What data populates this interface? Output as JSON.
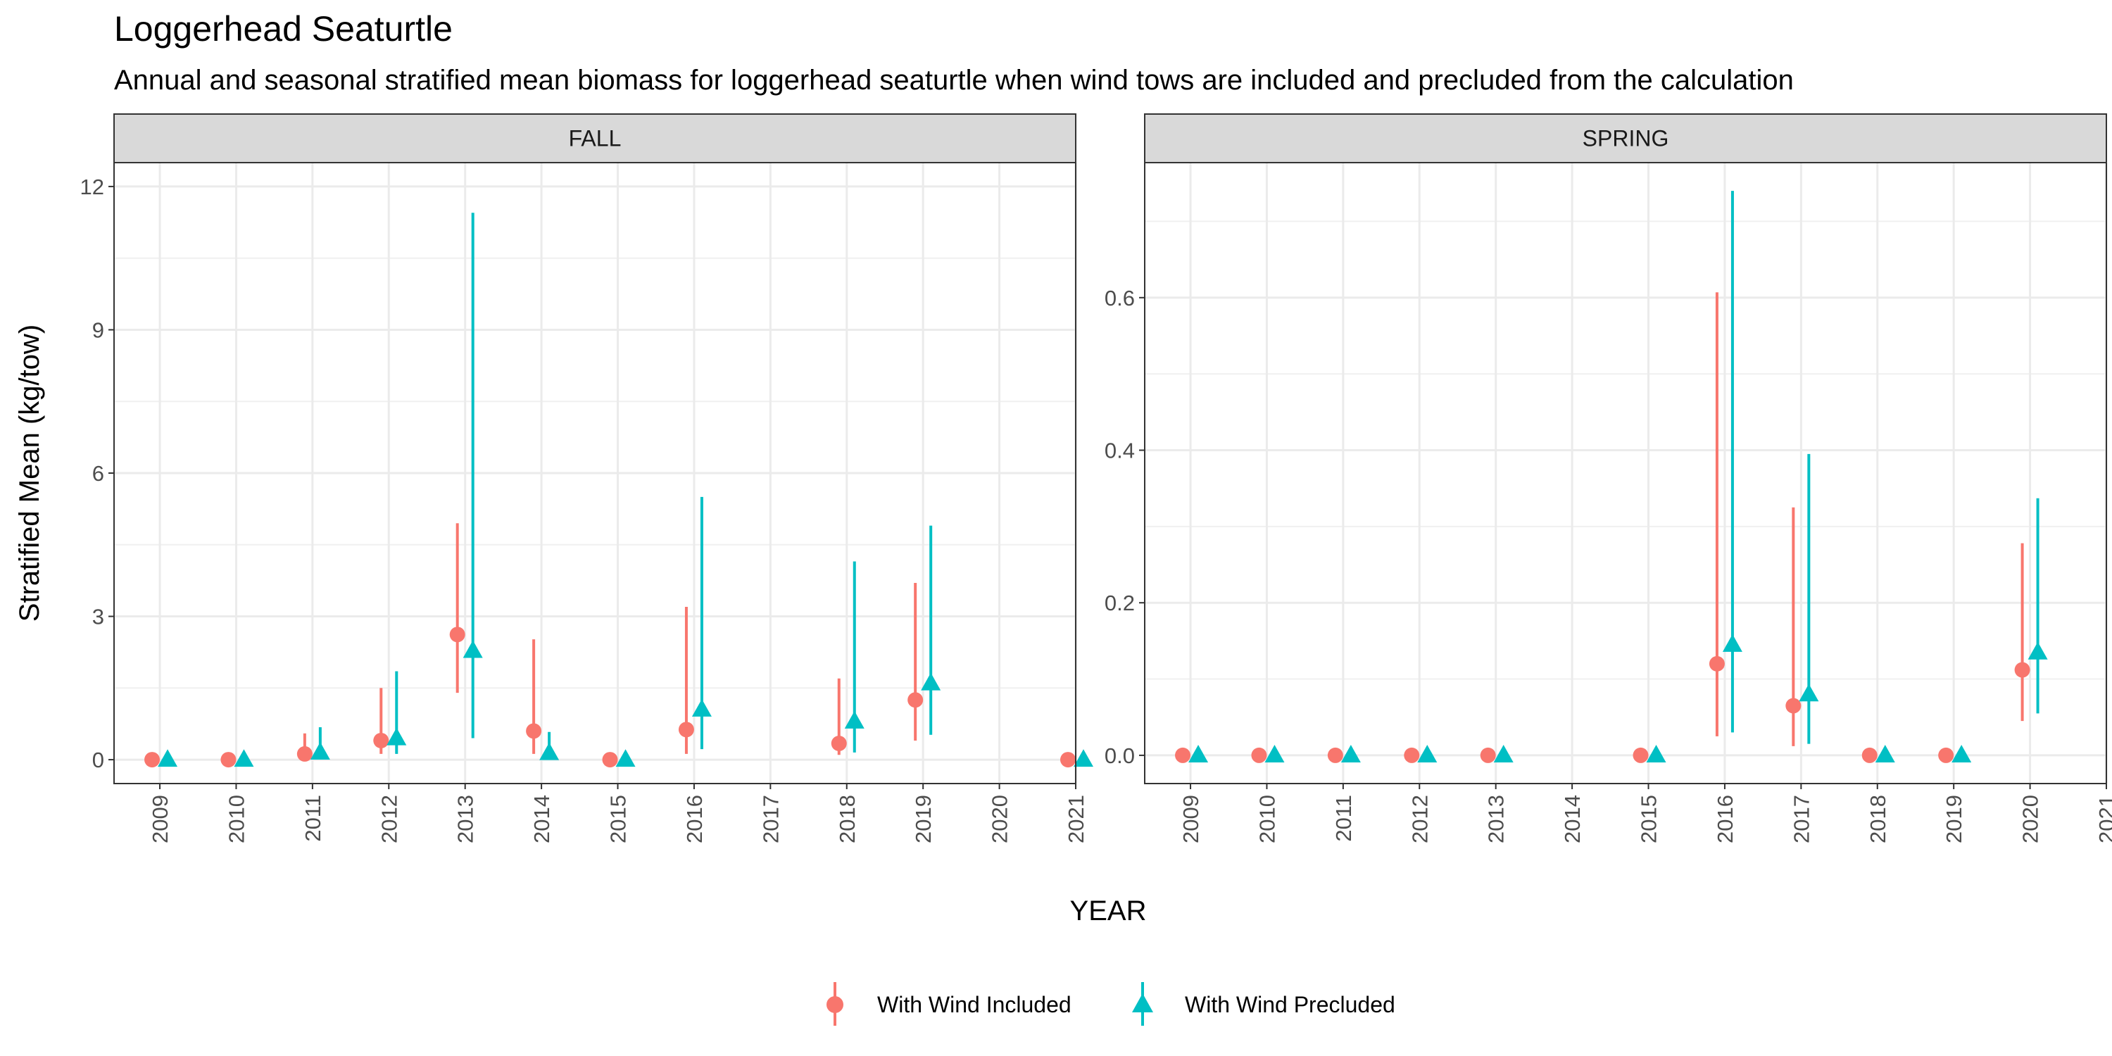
{
  "title": "Loggerhead Seaturtle",
  "subtitle": "Annual and seasonal stratified mean biomass for loggerhead seaturtle when wind tows are included and precluded from the calculation",
  "ylabel": "Stratified Mean (kg/tow)",
  "xlabel": "YEAR",
  "legend": {
    "position": "bottom",
    "items": [
      {
        "label": "With Wind Included",
        "color": "#F8766D",
        "shape": "circle"
      },
      {
        "label": "With Wind Precluded",
        "color": "#00BFC4",
        "shape": "triangle"
      }
    ]
  },
  "chart_data": [
    {
      "type": "scatter",
      "panel": "FALL",
      "categories": [
        "2009",
        "2010",
        "2011",
        "2012",
        "2013",
        "2014",
        "2015",
        "2016",
        "2017",
        "2018",
        "2019",
        "2020",
        "2021"
      ],
      "ylim": [
        -0.5,
        12.5
      ],
      "yticks": [
        0,
        3,
        6,
        9,
        12
      ],
      "ytick_labels": [
        "0",
        "3",
        "6",
        "9",
        "12"
      ],
      "grid": true,
      "series": [
        {
          "name": "With Wind Included",
          "color": "#F8766D",
          "shape": "circle",
          "points": [
            {
              "x": "2009",
              "y": 0.0,
              "lo": 0.0,
              "hi": 0.0
            },
            {
              "x": "2010",
              "y": 0.0,
              "lo": 0.0,
              "hi": 0.0
            },
            {
              "x": "2011",
              "y": 0.12,
              "lo": 0.02,
              "hi": 0.55
            },
            {
              "x": "2012",
              "y": 0.4,
              "lo": 0.12,
              "hi": 1.5
            },
            {
              "x": "2013",
              "y": 2.62,
              "lo": 1.4,
              "hi": 4.95
            },
            {
              "x": "2014",
              "y": 0.6,
              "lo": 0.12,
              "hi": 2.52
            },
            {
              "x": "2015",
              "y": 0.0,
              "lo": 0.0,
              "hi": 0.0
            },
            {
              "x": "2016",
              "y": 0.63,
              "lo": 0.12,
              "hi": 3.2
            },
            {
              "x": "2018",
              "y": 0.34,
              "lo": 0.1,
              "hi": 1.7
            },
            {
              "x": "2019",
              "y": 1.25,
              "lo": 0.4,
              "hi": 3.7
            },
            {
              "x": "2021",
              "y": 0.0,
              "lo": 0.0,
              "hi": 0.0
            }
          ]
        },
        {
          "name": "With Wind Precluded",
          "color": "#00BFC4",
          "shape": "triangle",
          "points": [
            {
              "x": "2009",
              "y": 0.0,
              "lo": 0.0,
              "hi": 0.0
            },
            {
              "x": "2010",
              "y": 0.0,
              "lo": 0.0,
              "hi": 0.0
            },
            {
              "x": "2011",
              "y": 0.15,
              "lo": 0.02,
              "hi": 0.68
            },
            {
              "x": "2012",
              "y": 0.45,
              "lo": 0.12,
              "hi": 1.85
            },
            {
              "x": "2013",
              "y": 2.28,
              "lo": 0.45,
              "hi": 11.45
            },
            {
              "x": "2014",
              "y": 0.14,
              "lo": 0.0,
              "hi": 0.58
            },
            {
              "x": "2015",
              "y": 0.0,
              "lo": 0.0,
              "hi": 0.0
            },
            {
              "x": "2016",
              "y": 1.05,
              "lo": 0.22,
              "hi": 5.5
            },
            {
              "x": "2018",
              "y": 0.8,
              "lo": 0.15,
              "hi": 4.15
            },
            {
              "x": "2019",
              "y": 1.6,
              "lo": 0.52,
              "hi": 4.9
            },
            {
              "x": "2021",
              "y": 0.0,
              "lo": 0.0,
              "hi": 0.0
            }
          ]
        }
      ]
    },
    {
      "type": "scatter",
      "panel": "SPRING",
      "categories": [
        "2009",
        "2010",
        "2011",
        "2012",
        "2013",
        "2014",
        "2015",
        "2016",
        "2017",
        "2018",
        "2019",
        "2020",
        "2021"
      ],
      "ylim": [
        -0.037,
        0.777
      ],
      "yticks": [
        0,
        0.2,
        0.4,
        0.6
      ],
      "ytick_labels": [
        "0.0",
        "0.2",
        "0.4",
        "0.6"
      ],
      "grid": true,
      "series": [
        {
          "name": "With Wind Included",
          "color": "#F8766D",
          "shape": "circle",
          "points": [
            {
              "x": "2009",
              "y": 0.0,
              "lo": 0.0,
              "hi": 0.0
            },
            {
              "x": "2010",
              "y": 0.0,
              "lo": 0.0,
              "hi": 0.0
            },
            {
              "x": "2011",
              "y": 0.0,
              "lo": 0.0,
              "hi": 0.0
            },
            {
              "x": "2012",
              "y": 0.0,
              "lo": 0.0,
              "hi": 0.0
            },
            {
              "x": "2013",
              "y": 0.0,
              "lo": 0.0,
              "hi": 0.0
            },
            {
              "x": "2015",
              "y": 0.0,
              "lo": 0.0,
              "hi": 0.0
            },
            {
              "x": "2016",
              "y": 0.12,
              "lo": 0.025,
              "hi": 0.607
            },
            {
              "x": "2017",
              "y": 0.065,
              "lo": 0.012,
              "hi": 0.325
            },
            {
              "x": "2018",
              "y": 0.0,
              "lo": 0.0,
              "hi": 0.0
            },
            {
              "x": "2019",
              "y": 0.0,
              "lo": 0.0,
              "hi": 0.0
            },
            {
              "x": "2020",
              "y": 0.112,
              "lo": 0.045,
              "hi": 0.278
            }
          ]
        },
        {
          "name": "With Wind Precluded",
          "color": "#00BFC4",
          "shape": "triangle",
          "points": [
            {
              "x": "2009",
              "y": 0.0,
              "lo": 0.0,
              "hi": 0.0
            },
            {
              "x": "2010",
              "y": 0.0,
              "lo": 0.0,
              "hi": 0.0
            },
            {
              "x": "2011",
              "y": 0.0,
              "lo": 0.0,
              "hi": 0.0
            },
            {
              "x": "2012",
              "y": 0.0,
              "lo": 0.0,
              "hi": 0.0
            },
            {
              "x": "2013",
              "y": 0.0,
              "lo": 0.0,
              "hi": 0.0
            },
            {
              "x": "2015",
              "y": 0.0,
              "lo": 0.0,
              "hi": 0.0
            },
            {
              "x": "2016",
              "y": 0.145,
              "lo": 0.03,
              "hi": 0.74
            },
            {
              "x": "2017",
              "y": 0.08,
              "lo": 0.015,
              "hi": 0.395
            },
            {
              "x": "2018",
              "y": 0.0,
              "lo": 0.0,
              "hi": 0.0
            },
            {
              "x": "2019",
              "y": 0.0,
              "lo": 0.0,
              "hi": 0.0
            },
            {
              "x": "2020",
              "y": 0.135,
              "lo": 0.055,
              "hi": 0.337
            }
          ]
        }
      ]
    }
  ]
}
